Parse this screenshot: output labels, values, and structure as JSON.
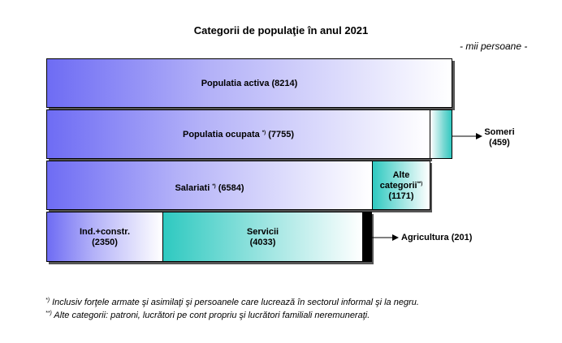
{
  "title": "Categorii de populaţie în anul 2021",
  "unit_note": "- mii persoane -",
  "labels": {
    "activa": "Populatia activa (8214)",
    "ocupata": "Populatia ocupata",
    "ocupata_mark": "*)",
    "ocupata_value": "(7755)",
    "someri_line1": "Someri",
    "someri_line2": "(459)",
    "salariati": "Salariati",
    "salariati_mark": "*)",
    "salariati_value": "(6584)",
    "alte_line1": "Alte",
    "alte_line2": "categorii",
    "alte_mark": "**)",
    "alte_line3": "(1171)",
    "ind_line1": "Ind.+constr.",
    "ind_line2": "(2350)",
    "servicii_line1": "Servicii",
    "servicii_line2": "(4033)",
    "agricultura": "Agricultura (201)"
  },
  "footnotes": {
    "f1_mark": "*)",
    "f1_text": " Inclusiv forţele armate şi asimilaţi şi persoanele care lucrează în sectorul informal şi la negru.",
    "f2_mark": "**)",
    "f2_text": "  Alte categorii: patroni, lucrători pe cont propriu şi lucrători familiali neremuneraţi."
  },
  "colors": {
    "purple": "#6e6cf4",
    "teal": "#2ec9c0",
    "black": "#000000"
  },
  "chart_data": {
    "type": "bar",
    "title": "Categorii de populaţie în anul 2021",
    "unit": "mii persoane",
    "rows": [
      {
        "segments": [
          {
            "name": "Populatia activa",
            "value": 8214
          }
        ]
      },
      {
        "segments": [
          {
            "name": "Populatia ocupata",
            "value": 7755
          },
          {
            "name": "Someri",
            "value": 459
          }
        ]
      },
      {
        "segments": [
          {
            "name": "Salariati",
            "value": 6584
          },
          {
            "name": "Alte categorii",
            "value": 1171
          }
        ]
      },
      {
        "segments": [
          {
            "name": "Ind.+constr.",
            "value": 2350
          },
          {
            "name": "Servicii",
            "value": 4033
          },
          {
            "name": "Agricultura",
            "value": 201
          }
        ]
      }
    ]
  }
}
